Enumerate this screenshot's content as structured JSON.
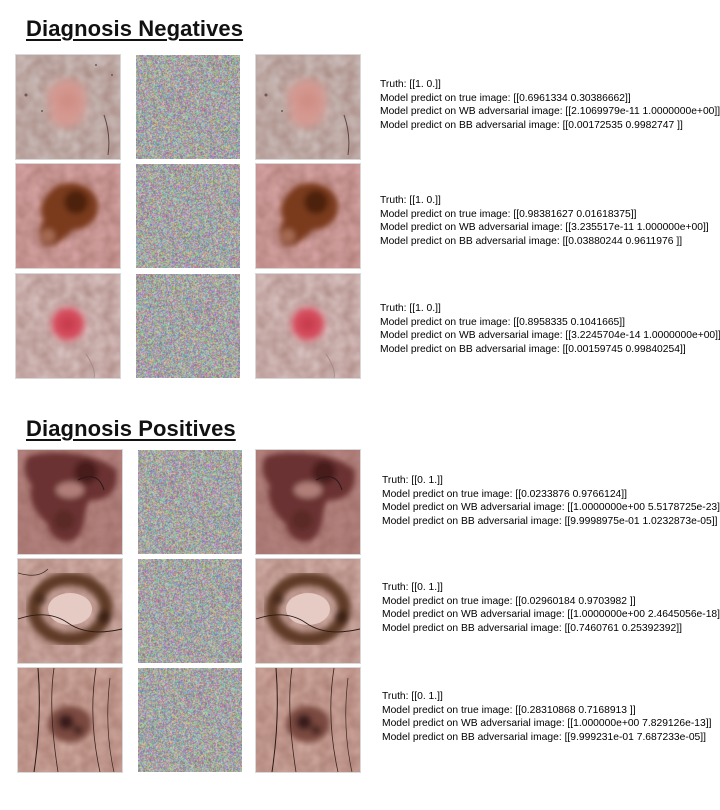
{
  "sections": [
    {
      "title": "Diagnosis Negatives",
      "rows": [
        {
          "lesion": "light-pink-mole",
          "truth": "Truth: [[1. 0.]]",
          "true_pred": "Model predict on true image: [[0.6961334 0.30386662]]",
          "wb_pred": "Model predict on WB adversarial image: [[2.1069979e-11 1.0000000e+00]]",
          "bb_pred": "Model predict on BB adversarial image: [[0.00172535 0.9982747 ]]"
        },
        {
          "lesion": "dark-brown-mole",
          "truth": "Truth: [[1. 0.]]",
          "true_pred": "Model predict on true image: [[0.98381627 0.01618375]]",
          "wb_pred": "Model predict on WB adversarial image: [[3.235517e-11 1.000000e+00]]",
          "bb_pred": "Model predict on BB adversarial image: [[0.03880244 0.9611976 ]]"
        },
        {
          "lesion": "red-round-spot",
          "truth": "Truth: [[1. 0.]]",
          "true_pred": "Model predict on true image: [[0.8958335 0.1041665]]",
          "wb_pred": "Model predict on WB adversarial image: [[3.2245704e-14 1.0000000e+00]]",
          "bb_pred": "Model predict on BB adversarial image: [[0.00159745 0.99840254]]"
        }
      ]
    },
    {
      "title": "Diagnosis Positives",
      "rows": [
        {
          "lesion": "large-dark-melanoma",
          "truth": "Truth: [[0. 1.]]",
          "true_pred": "Model predict on true image: [[0.0233876 0.9766124]]",
          "wb_pred": "Model predict on WB adversarial image: [[1.0000000e+00 5.5178725e-23]]",
          "bb_pred": "Model predict on BB adversarial image: [[9.9998975e-01 1.0232873e-05]]"
        },
        {
          "lesion": "ring-shaped-melanoma",
          "truth": "Truth: [[0. 1.]]",
          "true_pred": "Model predict on true image: [[0.02960184 0.9703982 ]]",
          "wb_pred": "Model predict on WB adversarial image: [[1.0000000e+00 2.4645056e-18]]",
          "bb_pred": "Model predict on BB adversarial image: [[0.7460761 0.25392392]]"
        },
        {
          "lesion": "hairy-skin-melanoma",
          "truth": "Truth: [[0. 1.]]",
          "true_pred": "Model predict on true image: [[0.28310868 0.7168913 ]]",
          "wb_pred": "Model predict on WB adversarial image: [[1.000000e+00 7.829126e-13]]",
          "bb_pred": "Model predict on BB adversarial image: [[9.999231e-01 7.687233e-05]]"
        }
      ]
    }
  ]
}
